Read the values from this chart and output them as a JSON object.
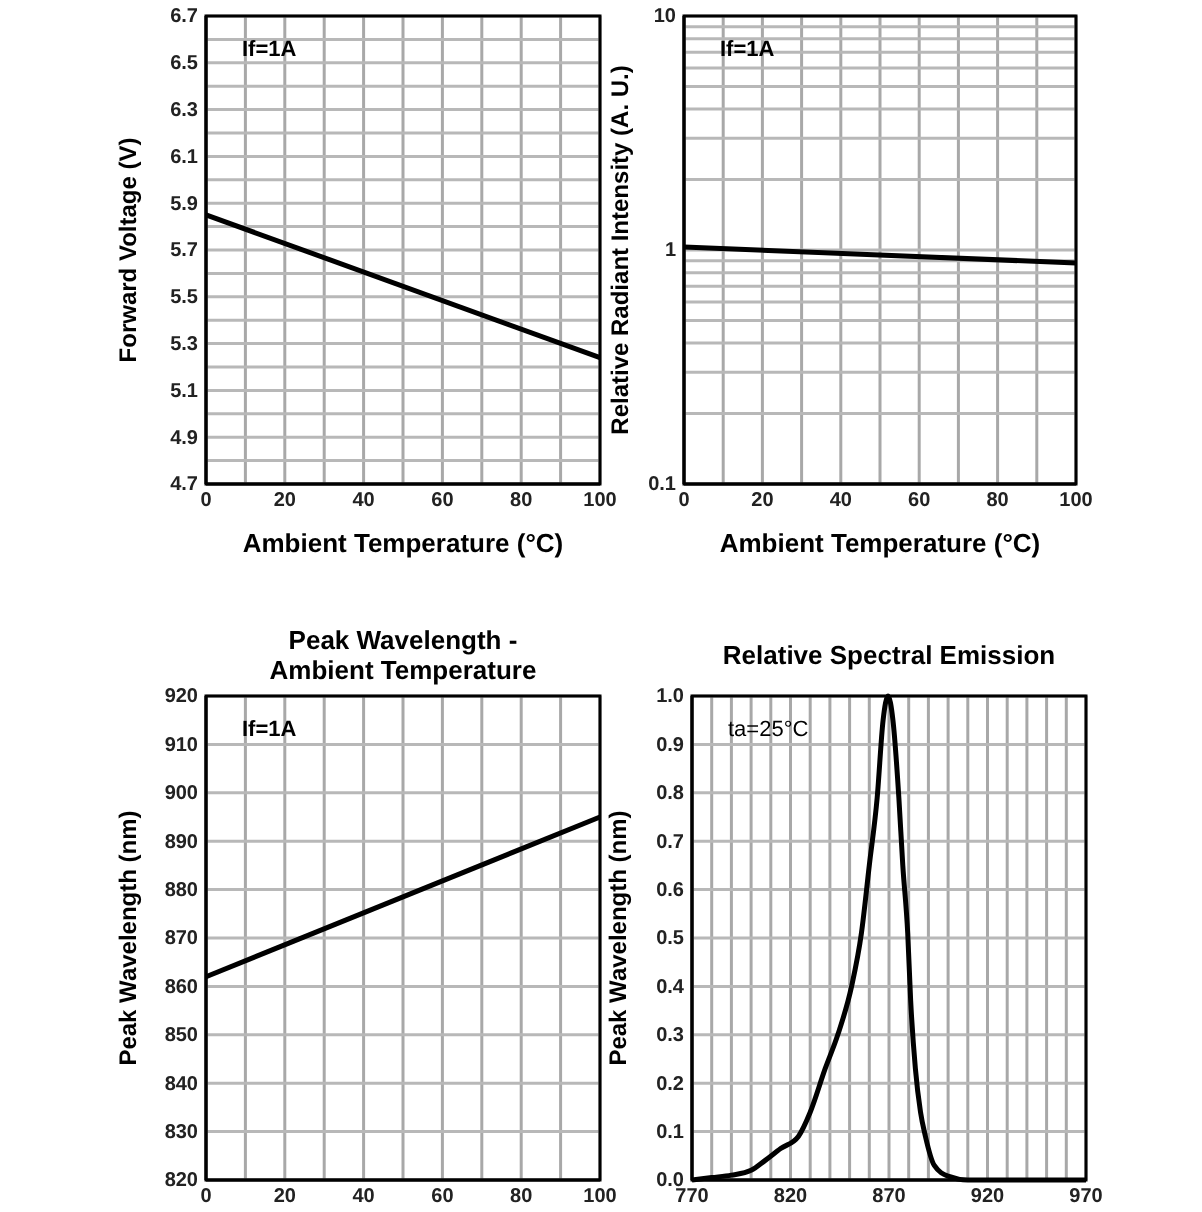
{
  "chart_data": [
    {
      "type": "line",
      "xlabel": "Ambient Temperature (°C)",
      "ylabel": "Forward Voltage (V)",
      "annotations": [
        "If=1A"
      ],
      "grid": true,
      "line_style": "solid",
      "marker": "none",
      "xlim": [
        0,
        100
      ],
      "xticks": [
        0,
        {
          "value": 10,
          "label": null
        },
        20,
        {
          "value": 30,
          "label": null
        },
        40,
        {
          "value": 50,
          "label": null
        },
        60,
        {
          "value": 70,
          "label": null
        },
        80,
        {
          "value": 90,
          "label": null
        },
        100
      ],
      "ylim": [
        4.7,
        6.7
      ],
      "yticks": [
        4.7,
        {
          "value": 4.8,
          "label": null
        },
        4.9,
        {
          "value": 5.0,
          "label": null
        },
        5.1,
        {
          "value": 5.2,
          "label": null
        },
        5.3,
        {
          "value": 5.4,
          "label": null
        },
        5.5,
        {
          "value": 5.6,
          "label": null
        },
        5.7,
        {
          "value": 5.8,
          "label": null
        },
        5.9,
        {
          "value": 6.0,
          "label": null
        },
        6.1,
        {
          "value": 6.2,
          "label": null
        },
        6.3,
        {
          "value": 6.4,
          "label": null
        },
        6.5,
        {
          "value": 6.6,
          "label": null
        },
        6.7
      ],
      "x": [
        0,
        100
      ],
      "series": [
        {
          "color": "#000000",
          "values": [
            5.85,
            5.24
          ]
        }
      ]
    },
    {
      "type": "line",
      "xlabel": "Ambient Temperature (°C)",
      "ylabel": "Relative Radiant Intensity (A. U.)",
      "annotations": [
        "If=1A"
      ],
      "grid": true,
      "line_style": "solid",
      "marker": "none",
      "log": "y",
      "xlim": [
        0,
        100
      ],
      "xticks": [
        0,
        {
          "value": 10,
          "label": null
        },
        20,
        {
          "value": 30,
          "label": null
        },
        40,
        {
          "value": 50,
          "label": null
        },
        60,
        {
          "value": 70,
          "label": null
        },
        80,
        {
          "value": 90,
          "label": null
        },
        100
      ],
      "ylim": [
        0.1,
        10
      ],
      "yticks": [
        0.1,
        {
          "value": 0.2,
          "label": null
        },
        {
          "value": 0.3,
          "label": null
        },
        {
          "value": 0.4,
          "label": null
        },
        {
          "value": 0.5,
          "label": null
        },
        {
          "value": 0.6,
          "label": null
        },
        {
          "value": 0.7,
          "label": null
        },
        {
          "value": 0.8,
          "label": null
        },
        {
          "value": 0.9,
          "label": null
        },
        1,
        {
          "value": 2,
          "label": null
        },
        {
          "value": 3,
          "label": null
        },
        {
          "value": 4,
          "label": null
        },
        {
          "value": 5,
          "label": null
        },
        {
          "value": 6,
          "label": null
        },
        {
          "value": 7,
          "label": null
        },
        {
          "value": 8,
          "label": null
        },
        {
          "value": 9,
          "label": null
        },
        10
      ],
      "x": [
        0,
        100
      ],
      "series": [
        {
          "color": "#000000",
          "values": [
            1.03,
            0.88
          ]
        }
      ]
    },
    {
      "type": "line",
      "title": "Peak Wavelength -\nAmbient Temperature",
      "ylabel": "Peak Wavelength (nm)",
      "annotations": [
        "If=1A"
      ],
      "grid": true,
      "line_style": "solid",
      "marker": "none",
      "xlim": [
        0,
        100
      ],
      "xticks": [
        0,
        {
          "value": 10,
          "label": null
        },
        20,
        {
          "value": 30,
          "label": null
        },
        40,
        {
          "value": 50,
          "label": null
        },
        60,
        {
          "value": 70,
          "label": null
        },
        80,
        {
          "value": 90,
          "label": null
        },
        100
      ],
      "ylim": [
        820,
        920
      ],
      "yticks": [
        820,
        830,
        840,
        850,
        860,
        870,
        880,
        890,
        900,
        910,
        920
      ],
      "x": [
        0,
        100
      ],
      "series": [
        {
          "color": "#000000",
          "values": [
            862,
            895
          ]
        }
      ]
    },
    {
      "type": "line",
      "title": "Relative Spectral Emission",
      "ylabel": "Peak Wavelength (nm)",
      "annotations": [
        "ta=25°C"
      ],
      "grid": true,
      "line_style": "solid",
      "marker": "none",
      "xlim": [
        770,
        970
      ],
      "xticks": [
        770,
        {
          "value": 780,
          "label": null
        },
        {
          "value": 790,
          "label": null
        },
        {
          "value": 800,
          "label": null
        },
        {
          "value": 810,
          "label": null
        },
        820,
        {
          "value": 830,
          "label": null
        },
        {
          "value": 840,
          "label": null
        },
        {
          "value": 850,
          "label": null
        },
        {
          "value": 860,
          "label": null
        },
        870,
        {
          "value": 880,
          "label": null
        },
        {
          "value": 890,
          "label": null
        },
        {
          "value": 900,
          "label": null
        },
        {
          "value": 910,
          "label": null
        },
        920,
        {
          "value": 930,
          "label": null
        },
        {
          "value": 940,
          "label": null
        },
        {
          "value": 950,
          "label": null
        },
        {
          "value": 960,
          "label": null
        },
        970
      ],
      "ylim": [
        0,
        1
      ],
      "yticks": [
        {
          "value": 0,
          "label": "0.0"
        },
        0.1,
        0.2,
        0.3,
        0.4,
        0.5,
        0.6,
        0.7,
        0.8,
        0.9,
        {
          "value": 1,
          "label": "1.0"
        }
      ],
      "x": [
        770,
        780,
        790,
        800,
        807,
        815,
        824,
        830,
        837.6,
        844,
        851,
        856,
        860,
        864,
        867,
        869.5,
        872,
        875,
        877,
        879.5,
        881,
        883.4,
        886,
        888.5,
        893,
        900,
        910,
        970
      ],
      "series": [
        {
          "color": "#000000",
          "values": [
            0,
            0.005,
            0.01,
            0.02,
            0.04,
            0.065,
            0.09,
            0.14,
            0.23,
            0.3,
            0.4,
            0.51,
            0.65,
            0.79,
            0.95,
            1.0,
            0.95,
            0.79,
            0.65,
            0.51,
            0.37,
            0.23,
            0.14,
            0.09,
            0.03,
            0.008,
            0,
            0
          ]
        }
      ]
    }
  ]
}
